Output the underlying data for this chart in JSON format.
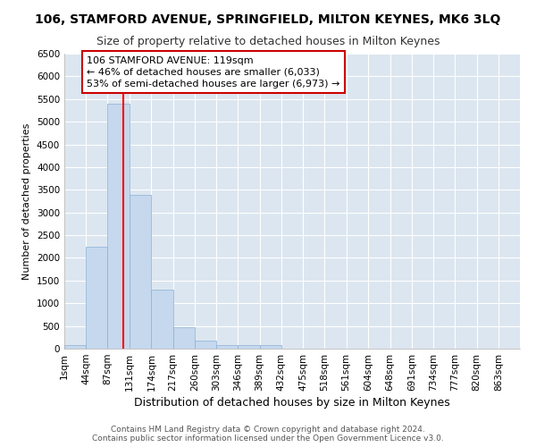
{
  "title": "106, STAMFORD AVENUE, SPRINGFIELD, MILTON KEYNES, MK6 3LQ",
  "subtitle": "Size of property relative to detached houses in Milton Keynes",
  "xlabel": "Distribution of detached houses by size in Milton Keynes",
  "ylabel": "Number of detached properties",
  "bar_color": "#c5d8ee",
  "bar_edgecolor": "#8ab0d4",
  "plot_background_color": "#dce6f0",
  "figure_background_color": "#ffffff",
  "grid_color": "#ffffff",
  "bin_edges": [
    1,
    44,
    87,
    131,
    174,
    217,
    260,
    303,
    346,
    389,
    432,
    475,
    518,
    561,
    604,
    648,
    691,
    734,
    777,
    820,
    863
  ],
  "bar_heights": [
    75,
    2250,
    5400,
    3380,
    1300,
    475,
    175,
    75,
    75,
    75,
    0,
    0,
    0,
    0,
    0,
    0,
    0,
    0,
    0,
    0
  ],
  "red_line_x": 119,
  "ylim": [
    0,
    6500
  ],
  "yticks": [
    0,
    500,
    1000,
    1500,
    2000,
    2500,
    3000,
    3500,
    4000,
    4500,
    5000,
    5500,
    6000,
    6500
  ],
  "xtick_labels": [
    "1sqm",
    "44sqm",
    "87sqm",
    "131sqm",
    "174sqm",
    "217sqm",
    "260sqm",
    "303sqm",
    "346sqm",
    "389sqm",
    "432sqm",
    "475sqm",
    "518sqm",
    "561sqm",
    "604sqm",
    "648sqm",
    "691sqm",
    "734sqm",
    "777sqm",
    "820sqm",
    "863sqm"
  ],
  "annotation_text": "106 STAMFORD AVENUE: 119sqm\n← 46% of detached houses are smaller (6,033)\n53% of semi-detached houses are larger (6,973) →",
  "annotation_box_color": "#ffffff",
  "annotation_box_edgecolor": "#cc0000",
  "footer_line1": "Contains HM Land Registry data © Crown copyright and database right 2024.",
  "footer_line2": "Contains public sector information licensed under the Open Government Licence v3.0.",
  "title_fontsize": 10,
  "subtitle_fontsize": 9,
  "xlabel_fontsize": 9,
  "ylabel_fontsize": 8,
  "tick_fontsize": 7.5,
  "annotation_fontsize": 8,
  "footer_fontsize": 6.5
}
